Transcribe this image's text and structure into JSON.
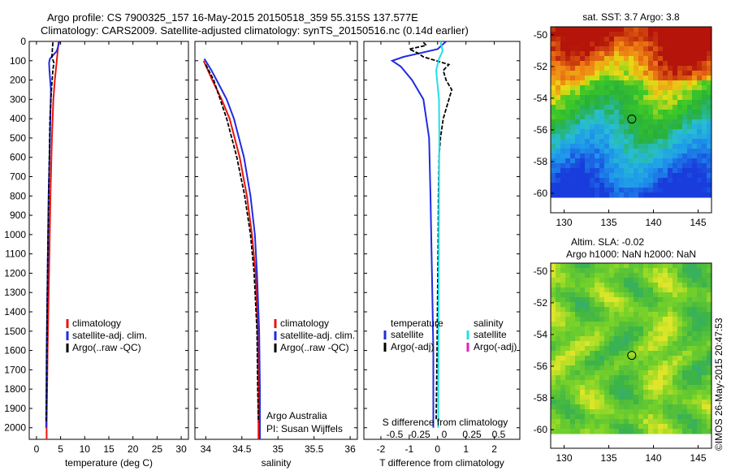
{
  "header": {
    "line1": "Argo profile: CS 7900325_157 16-May-2015 20150518_359 55.315S 137.577E",
    "line2": "Climatology: CARS2009. Satellite-adjusted climatology: synTS_20150516.nc (0.14d earlier)"
  },
  "stamp": "©IMOS 26-May-2015 20:47:53",
  "colors": {
    "climatology": "#e8150f",
    "satellite": "#1f2ce0",
    "argo": "#000000",
    "sal_satellite": "#22e0e8",
    "sal_argo": "#e020c8"
  },
  "chart_data": [
    {
      "type": "line",
      "xlabel": "temperature (deg C)",
      "ylabel": "",
      "xlim": [
        -1.5,
        31.5
      ],
      "ylim": [
        2060,
        0
      ],
      "xticks": [
        0,
        5,
        10,
        15,
        20,
        25,
        30
      ],
      "yticks": [
        0,
        100,
        200,
        300,
        400,
        500,
        600,
        700,
        800,
        900,
        1000,
        1100,
        1200,
        1300,
        1400,
        1500,
        1600,
        1700,
        1800,
        1900,
        2000
      ],
      "legend": [
        "climatology",
        "satellite-adj. clim.",
        "Argo(..raw -QC)"
      ],
      "legend_position": "lower-right",
      "series": [
        {
          "name": "climatology",
          "color": "#e8150f",
          "depth": [
            0,
            50,
            100,
            150,
            200,
            300,
            500,
            800,
            1200,
            1600,
            2000,
            2060
          ],
          "values": [
            4.6,
            4.4,
            4.2,
            4.0,
            3.8,
            3.5,
            3.2,
            2.9,
            2.6,
            2.3,
            2.1,
            2.1
          ]
        },
        {
          "name": "satellite-adj. clim.",
          "color": "#1f2ce0",
          "depth": [
            0,
            50,
            90,
            110,
            150,
            250,
            500,
            800,
            1200,
            1600,
            2000
          ],
          "values": [
            4.8,
            4.2,
            2.8,
            2.6,
            2.7,
            3.0,
            2.8,
            2.5,
            2.3,
            2.1,
            2.0
          ]
        },
        {
          "name": "Argo(..raw -QC)",
          "color": "#000000",
          "depth": [
            5,
            40,
            80,
            110,
            150,
            250,
            400,
            700,
            1000,
            1400,
            1800,
            1970
          ],
          "values": [
            3.4,
            3.3,
            3.2,
            3.6,
            3.4,
            3.1,
            2.8,
            2.6,
            2.4,
            2.2,
            2.1,
            2.0
          ]
        }
      ]
    },
    {
      "type": "line",
      "xlabel": "salinity",
      "ylabel": "",
      "xlim": [
        33.85,
        36.1
      ],
      "ylim": [
        2060,
        0
      ],
      "xticks": [
        34,
        34.5,
        35,
        35.5,
        36
      ],
      "legend": [
        "climatology",
        "satellite-adj. clim.",
        "Argo(..raw -QC)"
      ],
      "legend_position": "lower-right",
      "annotation": [
        "Argo Australia",
        "PI: Susan Wijffels"
      ],
      "series": [
        {
          "name": "climatology",
          "color": "#e8150f",
          "depth": [
            100,
            200,
            300,
            400,
            600,
            800,
            1000,
            1200,
            1500,
            1800,
            2060
          ],
          "values": [
            33.97,
            34.09,
            34.22,
            34.33,
            34.47,
            34.57,
            34.64,
            34.69,
            34.72,
            34.73,
            34.73
          ]
        },
        {
          "name": "satellite-adj. clim.",
          "color": "#1f2ce0",
          "depth": [
            90,
            150,
            200,
            300,
            400,
            600,
            800,
            1000,
            1200,
            1500,
            1800,
            2060
          ],
          "values": [
            33.98,
            34.08,
            34.15,
            34.29,
            34.39,
            34.53,
            34.62,
            34.68,
            34.71,
            34.74,
            34.75,
            34.75
          ]
        },
        {
          "name": "Argo(..raw -QC)",
          "color": "#000000",
          "depth": [
            120,
            200,
            300,
            400,
            600,
            800,
            1000,
            1200,
            1500,
            1800,
            1970
          ],
          "values": [
            34.0,
            34.11,
            34.2,
            34.29,
            34.43,
            34.54,
            34.62,
            34.67,
            34.71,
            34.72,
            34.73
          ]
        }
      ]
    },
    {
      "type": "line",
      "xlabel": "T difference from climatology",
      "ylabel": "",
      "top_label": "S difference from climatology",
      "xlim": [
        -2.6,
        2.9
      ],
      "ylim": [
        2060,
        0
      ],
      "xticks": [
        -2,
        -1,
        0,
        1,
        2
      ],
      "top_ticks": [
        "-0.5",
        "-0.25",
        "0",
        "0.25",
        "0.5"
      ],
      "legend_temperature_title": "temperature",
      "legend_salinity_title": "salinity",
      "legend_temperature": [
        "satellite",
        "Argo(-adj)"
      ],
      "legend_salinity": [
        "satellite",
        "Argo(-adj)"
      ],
      "series": [
        {
          "name": "satellite",
          "color": "#1f2ce0",
          "depth": [
            0,
            40,
            80,
            100,
            130,
            200,
            300,
            500,
            800,
            1200,
            1600,
            2000
          ],
          "values": [
            0.3,
            0.0,
            -1.2,
            -1.6,
            -1.3,
            -0.9,
            -0.5,
            -0.3,
            -0.25,
            -0.2,
            -0.15,
            -0.15
          ]
        },
        {
          "name": "Argo(-adj)",
          "color": "#000000",
          "depth": [
            5,
            20,
            40,
            60,
            80,
            120,
            150,
            200,
            250,
            300,
            400,
            500,
            600,
            800,
            1000,
            1300,
            1600,
            1960
          ],
          "values": [
            -0.5,
            -0.4,
            -1.0,
            -0.7,
            -0.5,
            0.4,
            0.2,
            0.3,
            0.5,
            0.4,
            0.2,
            0.1,
            0.05,
            0.03,
            0.02,
            0.0,
            -0.02,
            -0.05
          ]
        },
        {
          "name": "salinity satellite",
          "color": "#22e0e8",
          "depth": [
            0,
            50,
            90,
            150,
            200,
            300,
            500,
            800,
            1200,
            1600,
            2000
          ],
          "values": [
            0.1,
            0.18,
            0.05,
            -0.05,
            -0.02,
            0.05,
            0.06,
            0.05,
            0.04,
            0.03,
            0.02
          ]
        }
      ]
    },
    {
      "type": "heatmap",
      "title": "sat. SST: 3.7 Argo: 3.8",
      "xlim": [
        128.5,
        146.5
      ],
      "ylim": [
        -60.2,
        -49.5
      ],
      "xticks": [
        130,
        135,
        140,
        145
      ],
      "yticks": [
        -50,
        -52,
        -54,
        -56,
        -58,
        -60
      ],
      "marker": {
        "lon": 137.577,
        "lat": -55.315
      }
    },
    {
      "type": "heatmap",
      "title_lines": [
        "Altim. SLA: -0.02",
        "Argo h1000: NaN h2000: NaN"
      ],
      "xlim": [
        128.5,
        146.5
      ],
      "ylim": [
        -60.2,
        -49.5
      ],
      "xticks": [
        130,
        135,
        140,
        145
      ],
      "yticks": [
        -50,
        -52,
        -54,
        -56,
        -58,
        -60
      ],
      "marker": {
        "lon": 137.577,
        "lat": -55.315
      }
    }
  ]
}
